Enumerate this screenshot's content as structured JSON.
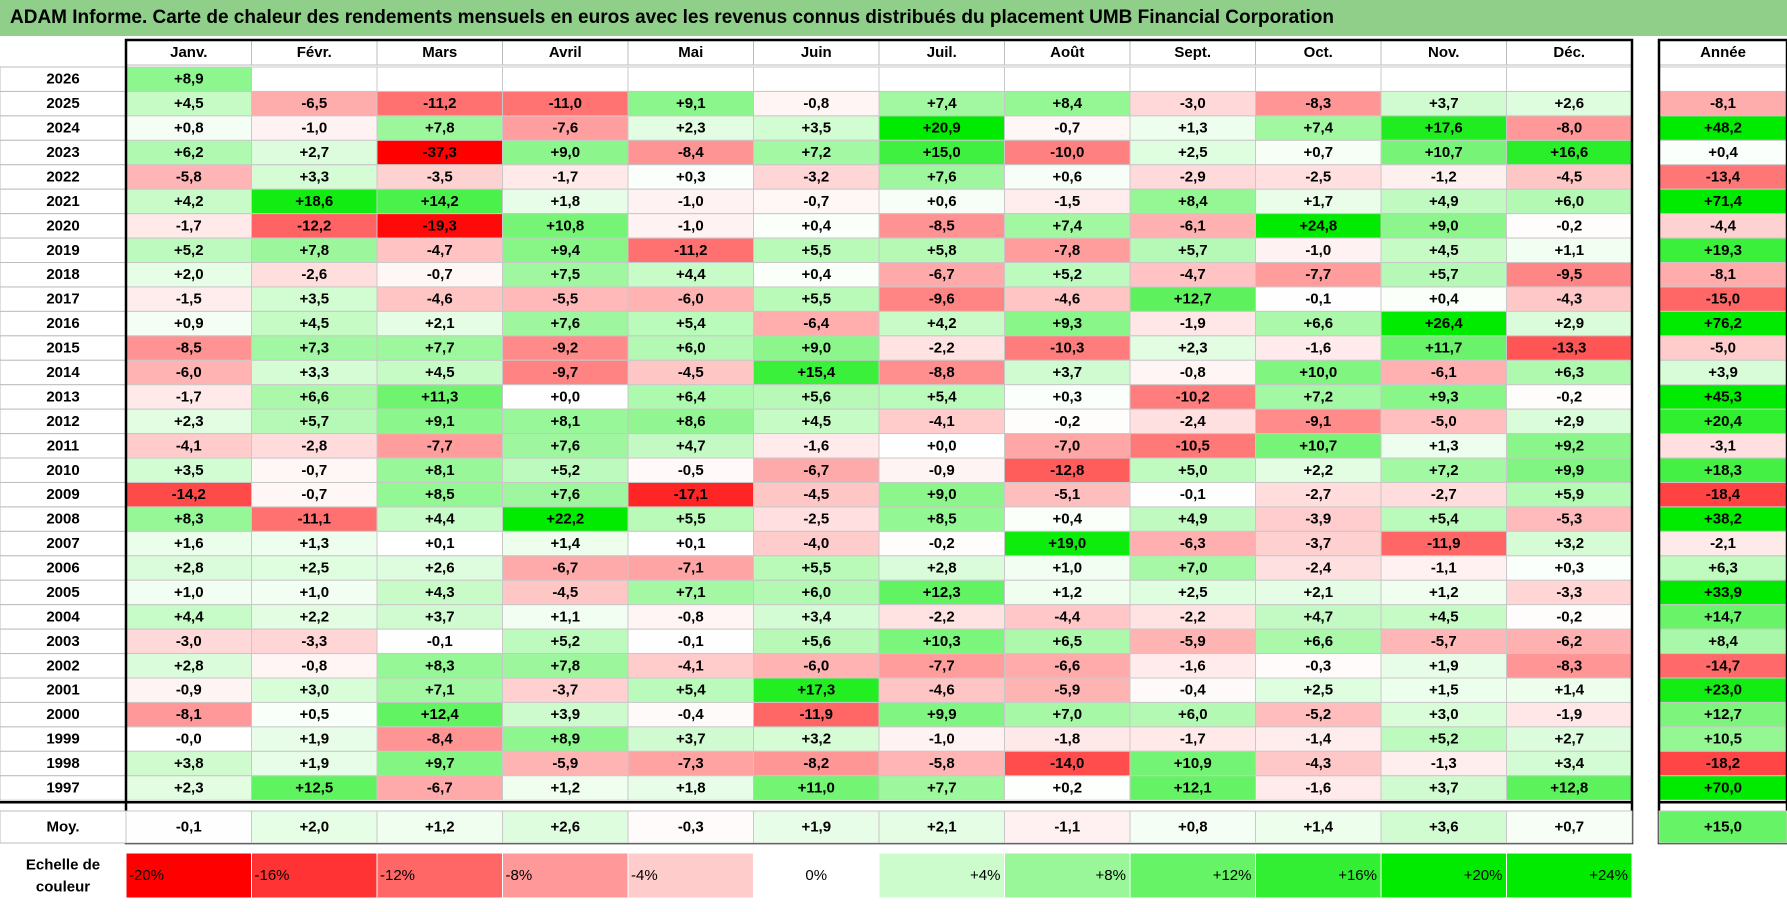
{
  "title": "ADAM Informe. Carte de chaleur des rendements mensuels en euros avec les revenus connus distribués du placement UMB Financial Corporation",
  "chart_data": {
    "type": "heatmap",
    "months": [
      "Janv.",
      "Févr.",
      "Mars",
      "Avril",
      "Mai",
      "Juin",
      "Juil.",
      "Août",
      "Sept.",
      "Oct.",
      "Nov.",
      "Déc."
    ],
    "year_header": "Année",
    "avg_label": "Moy.",
    "scale_label": [
      "Echelle de",
      "couleur"
    ],
    "rows": [
      {
        "year": "2026",
        "values": [
          "+8,9",
          "",
          "",
          "",
          "",
          "",
          "",
          "",
          "",
          "",
          "",
          ""
        ],
        "annual": ""
      },
      {
        "year": "2025",
        "values": [
          "+4,5",
          "-6,5",
          "-11,2",
          "-11,0",
          "+9,1",
          "-0,8",
          "+7,4",
          "+8,4",
          "-3,0",
          "-8,3",
          "+3,7",
          "+2,6"
        ],
        "annual": "-8,1"
      },
      {
        "year": "2024",
        "values": [
          "+0,8",
          "-1,0",
          "+7,8",
          "-7,6",
          "+2,3",
          "+3,5",
          "+20,9",
          "-0,7",
          "+1,3",
          "+7,4",
          "+17,6",
          "-8,0"
        ],
        "annual": "+48,2"
      },
      {
        "year": "2023",
        "values": [
          "+6,2",
          "+2,7",
          "-37,3",
          "+9,0",
          "-8,4",
          "+7,2",
          "+15,0",
          "-10,0",
          "+2,5",
          "+0,7",
          "+10,7",
          "+16,6"
        ],
        "annual": "+0,4"
      },
      {
        "year": "2022",
        "values": [
          "-5,8",
          "+3,3",
          "-3,5",
          "-1,7",
          "+0,3",
          "-3,2",
          "+7,6",
          "+0,6",
          "-2,9",
          "-2,5",
          "-1,2",
          "-4,5"
        ],
        "annual": "-13,4"
      },
      {
        "year": "2021",
        "values": [
          "+4,2",
          "+18,6",
          "+14,2",
          "+1,8",
          "-1,0",
          "-0,7",
          "+0,6",
          "-1,5",
          "+8,4",
          "+1,7",
          "+4,9",
          "+6,0"
        ],
        "annual": "+71,4"
      },
      {
        "year": "2020",
        "values": [
          "-1,7",
          "-12,2",
          "-19,3",
          "+10,8",
          "-1,0",
          "+0,4",
          "-8,5",
          "+7,4",
          "-6,1",
          "+24,8",
          "+9,0",
          "-0,2"
        ],
        "annual": "-4,4"
      },
      {
        "year": "2019",
        "values": [
          "+5,2",
          "+7,8",
          "-4,7",
          "+9,4",
          "-11,2",
          "+5,5",
          "+5,8",
          "-7,8",
          "+5,7",
          "-1,0",
          "+4,5",
          "+1,1"
        ],
        "annual": "+19,3"
      },
      {
        "year": "2018",
        "values": [
          "+2,0",
          "-2,6",
          "-0,7",
          "+7,5",
          "+4,4",
          "+0,4",
          "-6,7",
          "+5,2",
          "-4,7",
          "-7,7",
          "+5,7",
          "-9,5"
        ],
        "annual": "-8,1"
      },
      {
        "year": "2017",
        "values": [
          "-1,5",
          "+3,5",
          "-4,6",
          "-5,5",
          "-6,0",
          "+5,5",
          "-9,6",
          "-4,6",
          "+12,7",
          "-0,1",
          "+0,4",
          "-4,3"
        ],
        "annual": "-15,0"
      },
      {
        "year": "2016",
        "values": [
          "+0,9",
          "+4,5",
          "+2,1",
          "+7,6",
          "+5,4",
          "-6,4",
          "+4,2",
          "+9,3",
          "-1,9",
          "+6,6",
          "+26,4",
          "+2,9"
        ],
        "annual": "+76,2"
      },
      {
        "year": "2015",
        "values": [
          "-8,5",
          "+7,3",
          "+7,7",
          "-9,2",
          "+6,0",
          "+9,0",
          "-2,2",
          "-10,3",
          "+2,3",
          "-1,6",
          "+11,7",
          "-13,3"
        ],
        "annual": "-5,0"
      },
      {
        "year": "2014",
        "values": [
          "-6,0",
          "+3,3",
          "+4,5",
          "-9,7",
          "-4,5",
          "+15,4",
          "-8,8",
          "+3,7",
          "-0,8",
          "+10,0",
          "-6,1",
          "+6,3"
        ],
        "annual": "+3,9"
      },
      {
        "year": "2013",
        "values": [
          "-1,7",
          "+6,6",
          "+11,3",
          "+0,0",
          "+6,4",
          "+5,6",
          "+5,4",
          "+0,3",
          "-10,2",
          "+7,2",
          "+9,3",
          "-0,2"
        ],
        "annual": "+45,3"
      },
      {
        "year": "2012",
        "values": [
          "+2,3",
          "+5,7",
          "+9,1",
          "+8,1",
          "+8,6",
          "+4,5",
          "-4,1",
          "-0,2",
          "-2,4",
          "-9,1",
          "-5,0",
          "+2,9"
        ],
        "annual": "+20,4"
      },
      {
        "year": "2011",
        "values": [
          "-4,1",
          "-2,8",
          "-7,7",
          "+7,6",
          "+4,7",
          "-1,6",
          "+0,0",
          "-7,0",
          "-10,5",
          "+10,7",
          "+1,3",
          "+9,2"
        ],
        "annual": "-3,1"
      },
      {
        "year": "2010",
        "values": [
          "+3,5",
          "-0,7",
          "+8,1",
          "+5,2",
          "-0,5",
          "-6,7",
          "-0,9",
          "-12,8",
          "+5,0",
          "+2,2",
          "+7,2",
          "+9,9"
        ],
        "annual": "+18,3"
      },
      {
        "year": "2009",
        "values": [
          "-14,2",
          "-0,7",
          "+8,5",
          "+7,6",
          "-17,1",
          "-4,5",
          "+9,0",
          "-5,1",
          "-0,1",
          "-2,7",
          "-2,7",
          "+5,9"
        ],
        "annual": "-18,4"
      },
      {
        "year": "2008",
        "values": [
          "+8,3",
          "-11,1",
          "+4,4",
          "+22,2",
          "+5,5",
          "-2,5",
          "+8,5",
          "+0,4",
          "+4,9",
          "-3,9",
          "+5,4",
          "-5,3"
        ],
        "annual": "+38,2"
      },
      {
        "year": "2007",
        "values": [
          "+1,6",
          "+1,3",
          "+0,1",
          "+1,4",
          "+0,1",
          "-4,0",
          "-0,2",
          "+19,0",
          "-6,3",
          "-3,7",
          "-11,9",
          "+3,2"
        ],
        "annual": "-2,1"
      },
      {
        "year": "2006",
        "values": [
          "+2,8",
          "+2,5",
          "+2,6",
          "-6,7",
          "-7,1",
          "+5,5",
          "+2,8",
          "+1,0",
          "+7,0",
          "-2,4",
          "-1,1",
          "+0,3"
        ],
        "annual": "+6,3"
      },
      {
        "year": "2005",
        "values": [
          "+1,0",
          "+1,0",
          "+4,3",
          "-4,5",
          "+7,1",
          "+6,0",
          "+12,3",
          "+1,2",
          "+2,5",
          "+2,1",
          "+1,2",
          "-3,3"
        ],
        "annual": "+33,9"
      },
      {
        "year": "2004",
        "values": [
          "+4,4",
          "+2,2",
          "+3,7",
          "+1,1",
          "-0,8",
          "+3,4",
          "-2,2",
          "-4,4",
          "-2,2",
          "+4,7",
          "+4,5",
          "-0,2"
        ],
        "annual": "+14,7"
      },
      {
        "year": "2003",
        "values": [
          "-3,0",
          "-3,3",
          "-0,1",
          "+5,2",
          "-0,1",
          "+5,6",
          "+10,3",
          "+6,5",
          "-5,9",
          "+6,6",
          "-5,7",
          "-6,2"
        ],
        "annual": "+8,4"
      },
      {
        "year": "2002",
        "values": [
          "+2,8",
          "-0,8",
          "+8,3",
          "+7,8",
          "-4,1",
          "-6,0",
          "-7,7",
          "-6,6",
          "-1,6",
          "-0,3",
          "+1,9",
          "-8,3"
        ],
        "annual": "-14,7"
      },
      {
        "year": "2001",
        "values": [
          "-0,9",
          "+3,0",
          "+7,1",
          "-3,7",
          "+5,4",
          "+17,3",
          "-4,6",
          "-5,9",
          "-0,4",
          "+2,5",
          "+1,5",
          "+1,4"
        ],
        "annual": "+23,0"
      },
      {
        "year": "2000",
        "values": [
          "-8,1",
          "+0,5",
          "+12,4",
          "+3,9",
          "-0,4",
          "-11,9",
          "+9,9",
          "+7,0",
          "+6,0",
          "-5,2",
          "+3,0",
          "-1,9"
        ],
        "annual": "+12,7"
      },
      {
        "year": "1999",
        "values": [
          "-0,0",
          "+1,9",
          "-8,4",
          "+8,9",
          "+3,7",
          "+3,2",
          "-1,0",
          "-1,8",
          "-1,7",
          "-1,4",
          "+5,2",
          "+2,7"
        ],
        "annual": "+10,5"
      },
      {
        "year": "1998",
        "values": [
          "+3,8",
          "+1,9",
          "+9,7",
          "-5,9",
          "-7,3",
          "-8,2",
          "-5,8",
          "-14,0",
          "+10,9",
          "-4,3",
          "-1,3",
          "+3,4"
        ],
        "annual": "-18,2"
      },
      {
        "year": "1997",
        "values": [
          "+2,3",
          "+12,5",
          "-6,7",
          "+1,2",
          "+1,8",
          "+11,0",
          "+7,7",
          "+0,2",
          "+12,1",
          "-1,6",
          "+3,7",
          "+12,8"
        ],
        "annual": "+70,0"
      }
    ],
    "average": {
      "values": [
        "-0,1",
        "+2,0",
        "+1,2",
        "+2,6",
        "-0,3",
        "+1,9",
        "+2,1",
        "-1,1",
        "+0,8",
        "+1,4",
        "+3,6",
        "+0,7"
      ],
      "annual": "+15,0"
    },
    "scale": [
      "-20%",
      "-16%",
      "-12%",
      "-8%",
      "-4%",
      "0%",
      "+4%",
      "+8%",
      "+12%",
      "+16%",
      "+20%",
      "+24%"
    ]
  }
}
